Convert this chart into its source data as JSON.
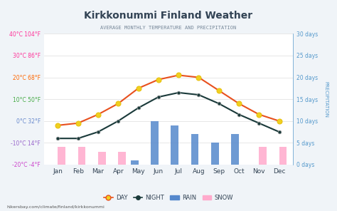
{
  "title": "Kirkkonummi Finland Weather",
  "subtitle": "AVERAGE MONTHLY TEMPERATURE AND PRECIPITATION",
  "months": [
    "Jan",
    "Feb",
    "Mar",
    "Apr",
    "May",
    "Jun",
    "Jul",
    "Aug",
    "Sep",
    "Oct",
    "Nov",
    "Dec"
  ],
  "day_temp": [
    -2,
    -1,
    3,
    8,
    15,
    19,
    21,
    20,
    14,
    8,
    3,
    0
  ],
  "night_temp": [
    -8,
    -8,
    -5,
    0,
    6,
    11,
    13,
    12,
    8,
    3,
    -1,
    -5
  ],
  "rain_days": [
    0,
    0,
    0,
    0,
    1,
    10,
    9,
    7,
    5,
    7,
    0,
    0
  ],
  "snow_days": [
    4,
    4,
    3,
    3,
    0,
    0,
    0,
    0,
    0,
    0,
    4,
    4
  ],
  "ylim_temp": [
    -20,
    40
  ],
  "ylim_precip": [
    0,
    30
  ],
  "yticks_temp": [
    -20,
    -10,
    0,
    10,
    20,
    30,
    40
  ],
  "ytick_labels_temp": [
    "-20°C -4°F",
    "-10°C 14°F",
    "0°C 32°F",
    "10°C 50°F",
    "20°C 68°F",
    "30°C 86°F",
    "40°C 104°F"
  ],
  "ytick_colors_temp": [
    "#cc44cc",
    "#9966cc",
    "#6688cc",
    "#44aa44",
    "#ff6600",
    "#ff3399",
    "#ff3399"
  ],
  "yticks_precip": [
    0,
    5,
    10,
    15,
    20,
    25,
    30
  ],
  "ytick_labels_precip": [
    "0 days",
    "5 days",
    "10 days",
    "15 days",
    "20 days",
    "25 days",
    "30 days"
  ],
  "bg_color": "#f0f4f8",
  "plot_bg": "#ffffff",
  "day_color": "#e8501e",
  "night_color": "#1a3a3a",
  "rain_color": "#5588cc",
  "snow_color": "#ffaacc",
  "grid_color": "#dddddd",
  "title_color": "#334455",
  "subtitle_color": "#778899",
  "left_label_color": "#cc6699",
  "right_label_color": "#5599cc",
  "watermark": "hikersbay.com/climate/finland/kirkkonummi"
}
